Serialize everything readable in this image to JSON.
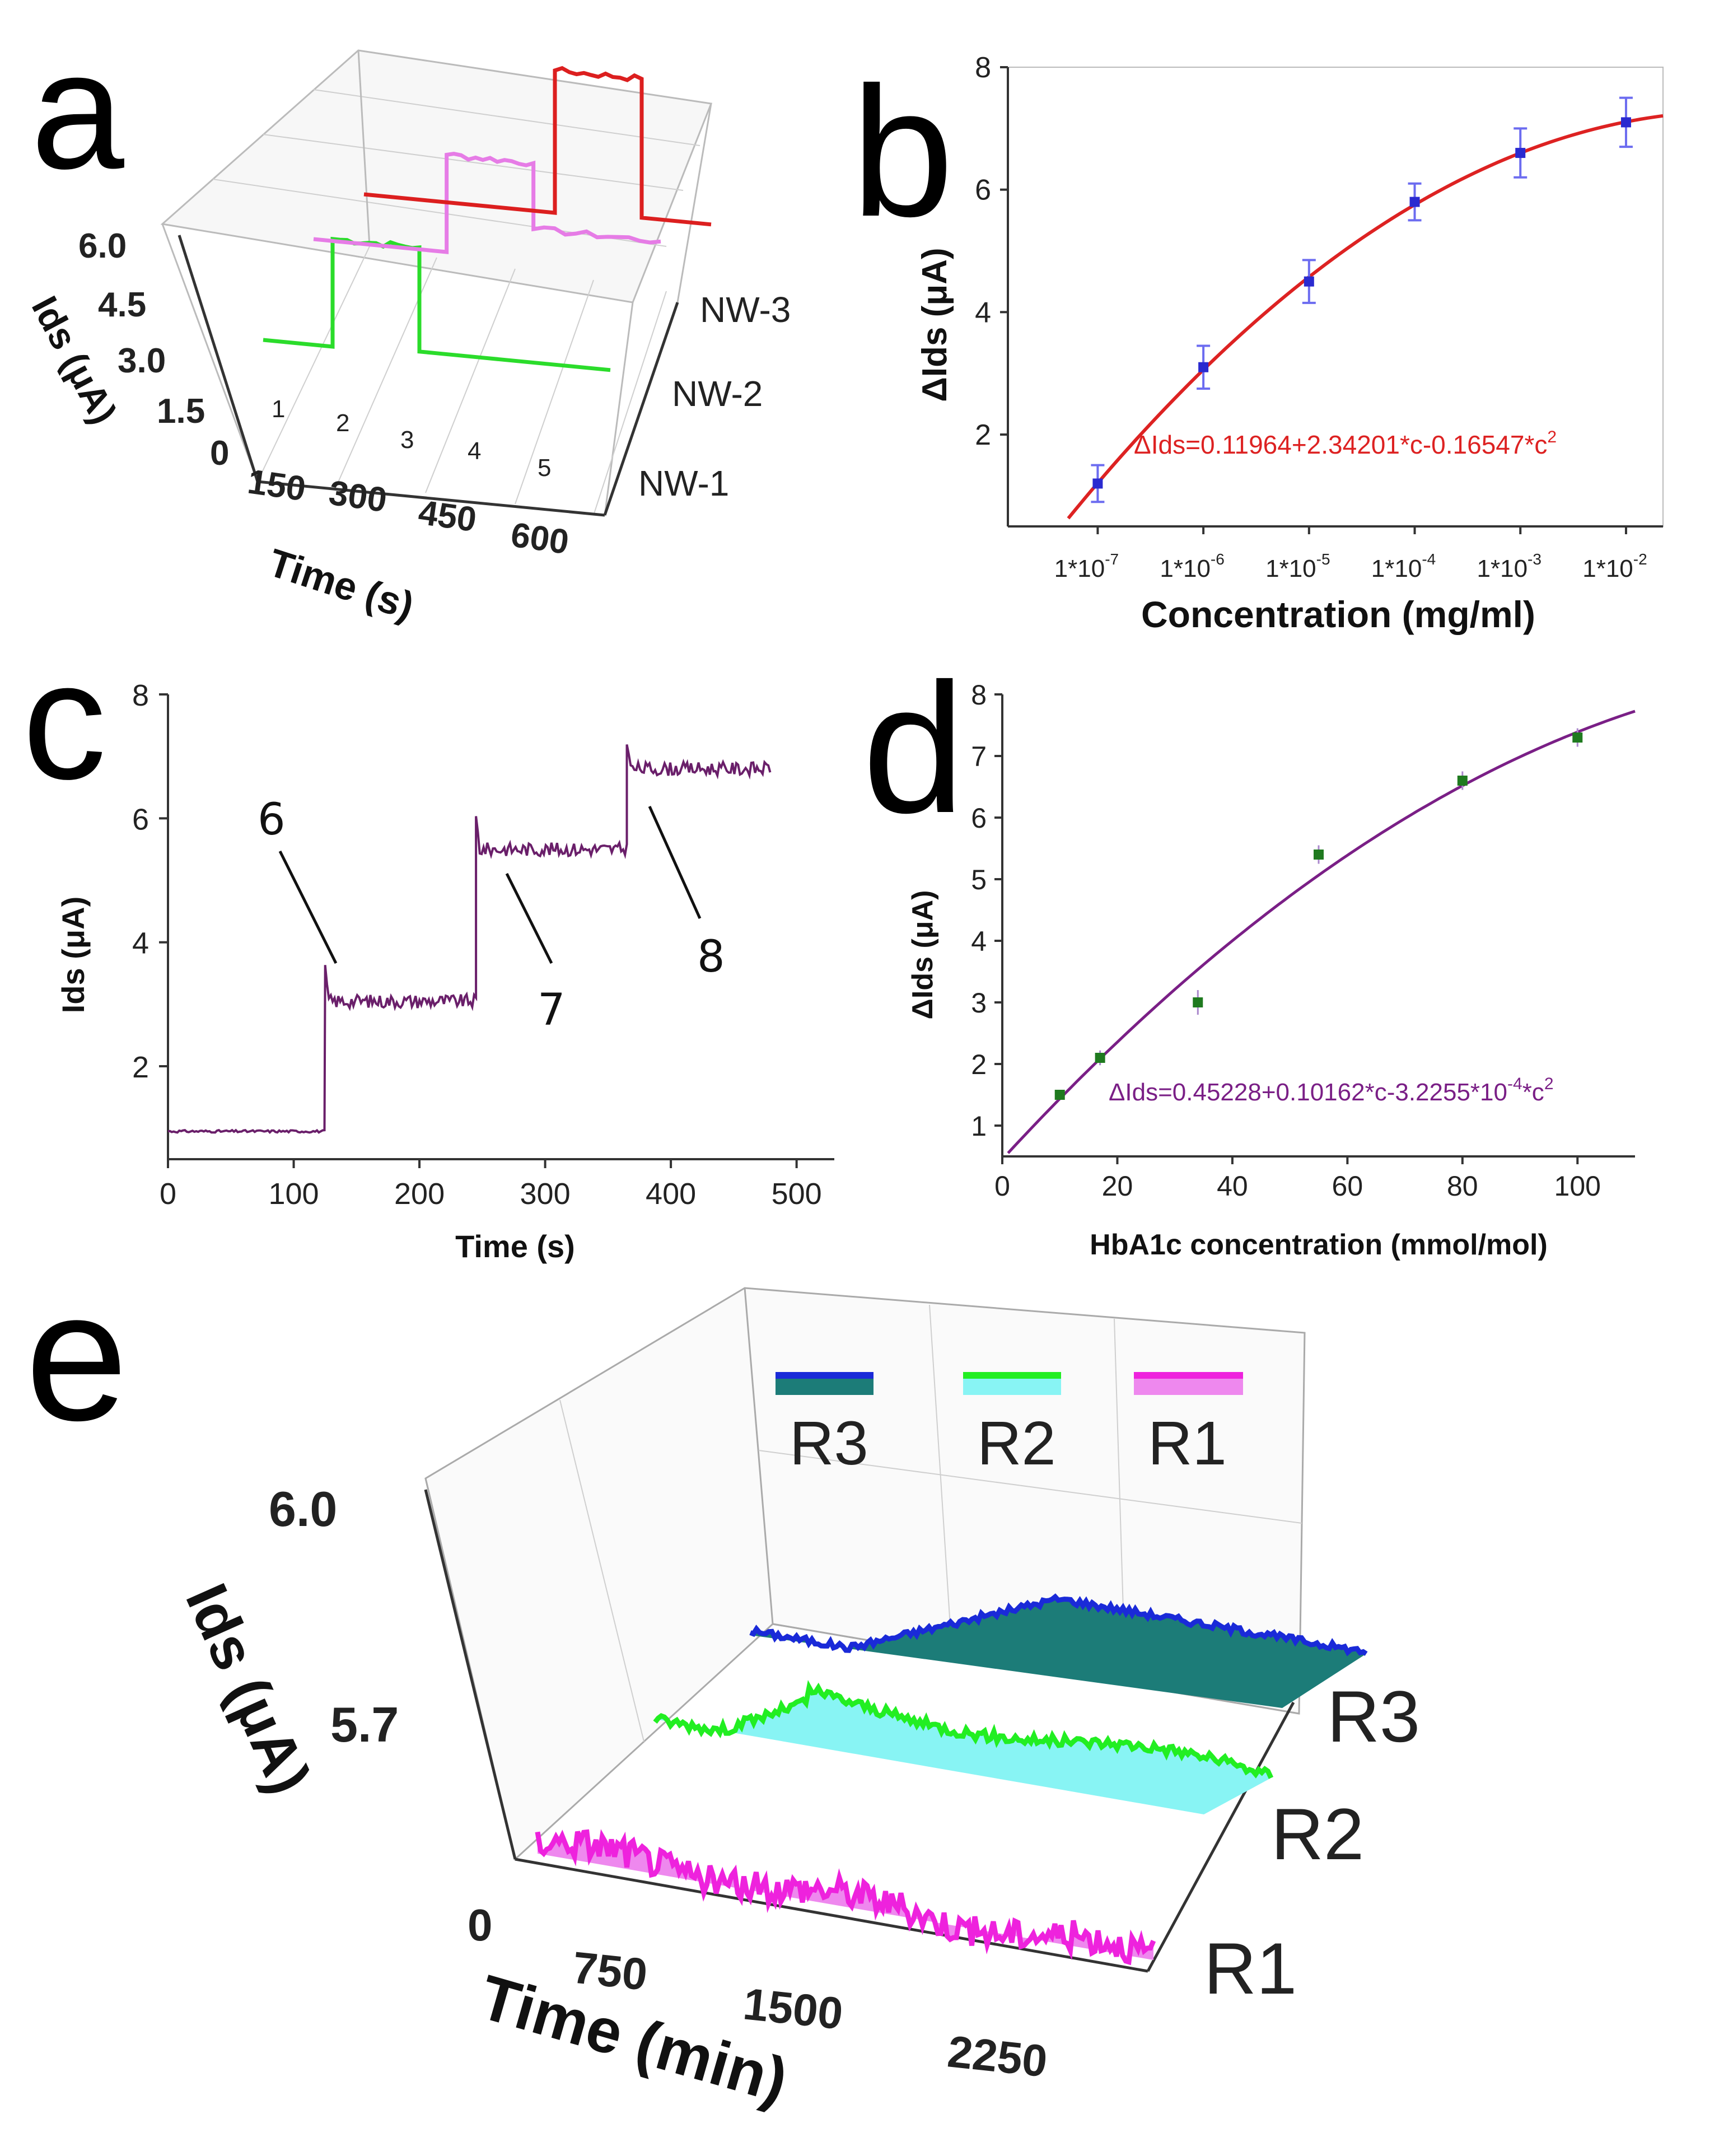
{
  "panels": {
    "a": "a",
    "b": "b",
    "c": "c",
    "d": "d",
    "e": "e"
  },
  "colors": {
    "nw1": "#2bdc2b",
    "nw2": "#e67ce6",
    "nw3": "#dc1f1f",
    "fit_b": "#dd2222",
    "pts_b": "#2a2ad0",
    "err_b": "#6c6cf0",
    "line_c": "#6a1f6a",
    "fit_d": "#7a1f86",
    "pts_d": "#1f7a1f",
    "r3_line": "#1a2ad8",
    "r3_fill": "#1c7c78",
    "r2_line": "#22ee22",
    "r2_fill": "#88f4f4",
    "r1_line": "#ee22dd",
    "r1_fill": "#ee88ee"
  },
  "chart_data": [
    {
      "panel": "a",
      "type": "line",
      "style": "3d-waterfall",
      "xlabel": "Time (s)",
      "ylabel": "Ids (μA)",
      "x_ticks": [
        "0",
        "150",
        "300",
        "450",
        "600"
      ],
      "y_ticks": [
        "1.5",
        "3.0",
        "4.5",
        "6.0"
      ],
      "xlim": [
        0,
        600
      ],
      "ylim": [
        0,
        6.0
      ],
      "event_labels": [
        "1",
        "2",
        "3",
        "4",
        "5"
      ],
      "series": [
        {
          "name": "NW-1",
          "segments": [
            {
              "t": [
                0,
                120
              ],
              "ids": 1.5
            },
            {
              "t": [
                120,
                270
              ],
              "ids": 4.6
            },
            {
              "t": [
                270,
                600
              ],
              "ids": 1.6
            }
          ]
        },
        {
          "name": "NW-2",
          "segments": [
            {
              "t": [
                0,
                230
              ],
              "ids": 1.5
            },
            {
              "t": [
                230,
                380
              ],
              "ids": 4.3
            },
            {
              "t": [
                380,
                600
              ],
              "ids": 2.4
            }
          ]
        },
        {
          "name": "NW-3",
          "segments": [
            {
              "t": [
                0,
                330
              ],
              "ids": 1.5
            },
            {
              "t": [
                330,
                480
              ],
              "ids": 5.6
            },
            {
              "t": [
                480,
                600
              ],
              "ids": 1.6
            }
          ]
        }
      ]
    },
    {
      "panel": "b",
      "type": "scatter",
      "xlabel": "Concentration (mg/ml)",
      "ylabel": "ΔIds (μA)",
      "x_ticks": [
        "1*10",
        "1*10",
        "1*10",
        "1*10",
        "1*10",
        "1*10"
      ],
      "x_tick_exponents": [
        "-7",
        "-6",
        "-5",
        "-4",
        "-3",
        "-2"
      ],
      "y_ticks": [
        "2",
        "4",
        "6",
        "8"
      ],
      "ylim": [
        0.5,
        8
      ],
      "x_log_mg_ml": [
        -7,
        -6,
        -5,
        -4,
        -3,
        -2
      ],
      "values": [
        1.2,
        3.1,
        4.5,
        5.8,
        6.6,
        7.1
      ],
      "errors": [
        0.3,
        0.35,
        0.35,
        0.3,
        0.4,
        0.4
      ],
      "fit_equation": "ΔIds=0.11964+2.34201*c-0.16547*c",
      "fit_equation_exponent": "2"
    },
    {
      "panel": "c",
      "type": "line",
      "xlabel": "Time (s)",
      "ylabel": "Ids (μA)",
      "x_ticks": [
        "0",
        "100",
        "200",
        "300",
        "400",
        "500"
      ],
      "y_ticks": [
        "2",
        "4",
        "6",
        "8"
      ],
      "xlim": [
        0,
        530
      ],
      "ylim": [
        0.5,
        8
      ],
      "steps": [
        {
          "t": [
            0,
            125
          ],
          "ids": 0.95
        },
        {
          "t": [
            125,
            245
          ],
          "ids": 3.05
        },
        {
          "t": [
            245,
            365
          ],
          "ids": 5.5
        },
        {
          "t": [
            365,
            480
          ],
          "ids": 6.8
        }
      ],
      "annotations": [
        "6",
        "7",
        "8"
      ]
    },
    {
      "panel": "d",
      "type": "scatter",
      "xlabel": "HbA1c concentration (mmol/mol)",
      "ylabel": "ΔIds (μA)",
      "x_ticks": [
        "0",
        "20",
        "40",
        "60",
        "80",
        "100"
      ],
      "y_ticks": [
        "1",
        "2",
        "3",
        "4",
        "5",
        "6",
        "7",
        "8"
      ],
      "xlim": [
        0,
        110
      ],
      "ylim": [
        0.5,
        8
      ],
      "x": [
        10,
        17,
        34,
        55,
        80,
        100
      ],
      "values": [
        1.5,
        2.1,
        3.0,
        5.4,
        6.6,
        7.3
      ],
      "errors": [
        0.08,
        0.12,
        0.2,
        0.15,
        0.15,
        0.15
      ],
      "fit_equation": "ΔIds=0.45228+0.10162*c-3.2255*10",
      "fit_equation_exponents": [
        "-4",
        "2"
      ],
      "fit_equation_tail": "*c"
    },
    {
      "panel": "e",
      "type": "area",
      "style": "3d-waterfall",
      "xlabel": "Time (min)",
      "ylabel": "Ids (μA)",
      "x_ticks": [
        "0",
        "750",
        "1500",
        "2250"
      ],
      "y_ticks": [
        "5.7",
        "6.0"
      ],
      "xlim": [
        0,
        2800
      ],
      "legend": [
        "R3",
        "R2",
        "R1"
      ],
      "series": [
        {
          "name": "R3",
          "description_levels_uA": [
            5.75,
            5.9
          ]
        },
        {
          "name": "R2",
          "description_levels_uA": [
            5.7,
            5.8
          ]
        },
        {
          "name": "R1",
          "description_levels_uA": [
            5.56,
            5.58
          ]
        }
      ],
      "axis_labels": [
        "R3",
        "R2",
        "R1"
      ]
    }
  ]
}
